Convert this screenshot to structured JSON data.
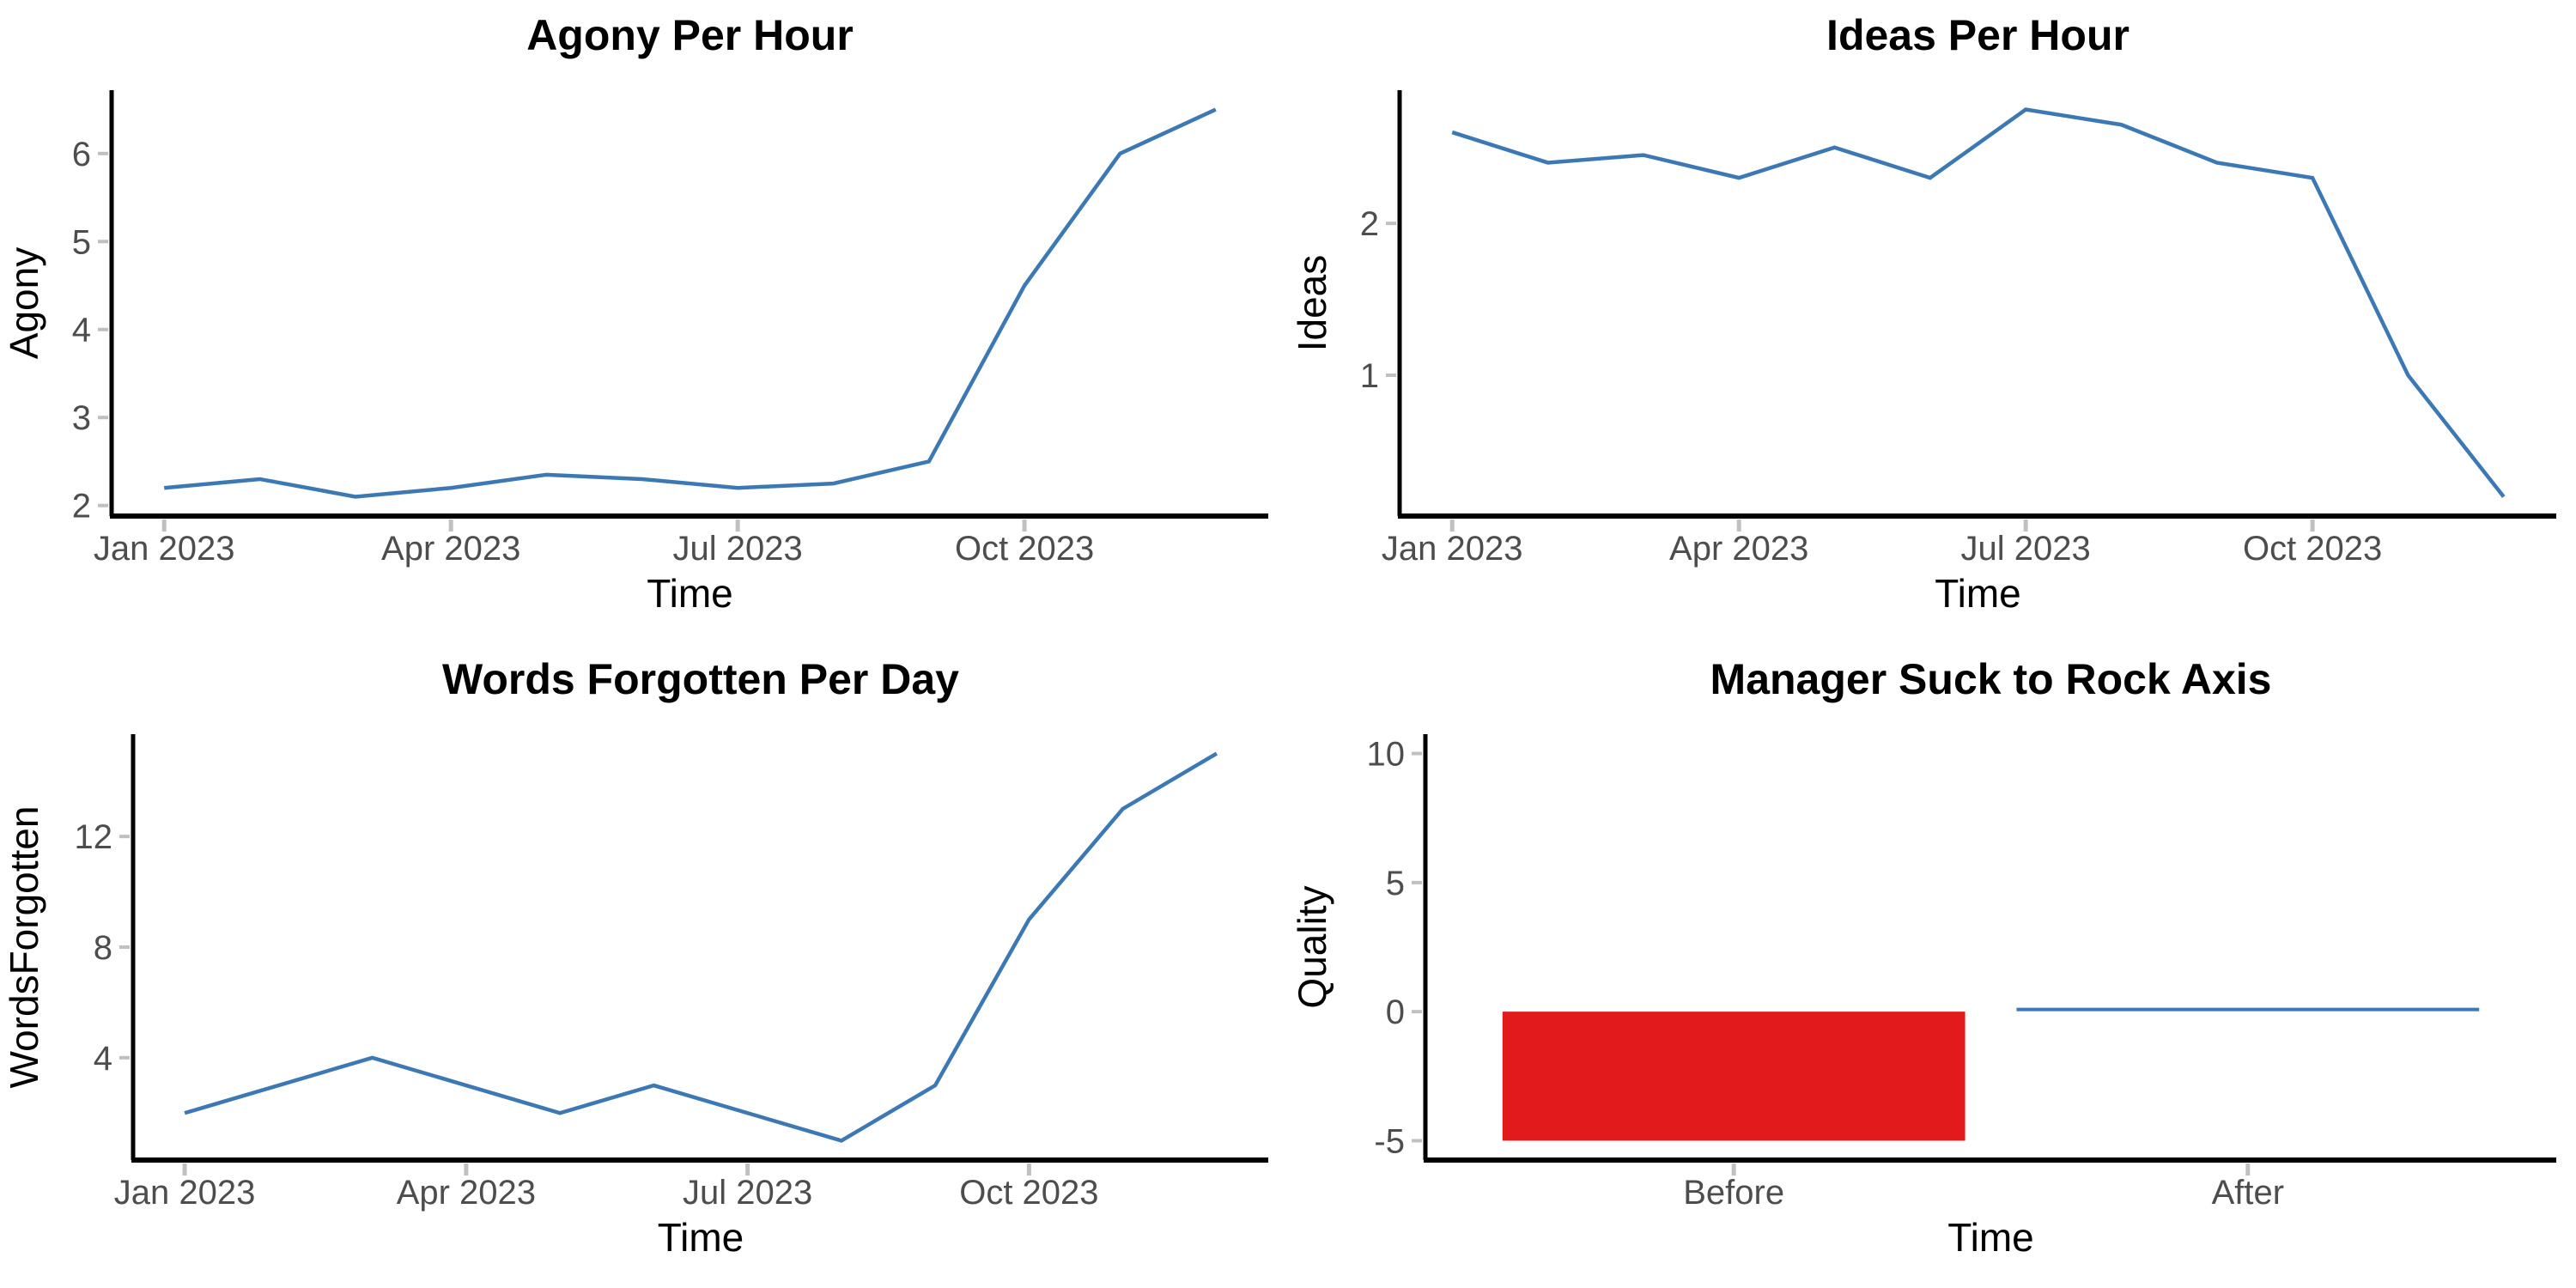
{
  "page": {
    "background": "#FFFFFF"
  },
  "style": {
    "axis_line_color": "#000000",
    "tick_mark_color": "#C0C0C0",
    "tick_label_color": "#4D4D4D",
    "title_color": "#000000",
    "axis_title_color": "#000000"
  },
  "chart_data": [
    {
      "type": "line",
      "title": "Agony Per Hour",
      "xlabel": "Time",
      "ylabel": "Agony",
      "x": [
        "Jan 2023",
        "Feb 2023",
        "Mar 2023",
        "Apr 2023",
        "May 2023",
        "Jun 2023",
        "Jul 2023",
        "Aug 2023",
        "Sep 2023",
        "Oct 2023",
        "Nov 2023",
        "Dec 2023"
      ],
      "values": [
        2.2,
        2.3,
        2.1,
        2.2,
        2.35,
        2.3,
        2.2,
        2.25,
        2.5,
        4.5,
        6.0,
        6.5
      ],
      "yticks": [
        2,
        3,
        4,
        5,
        6
      ],
      "xticks": [
        {
          "index": 0,
          "label": "Jan 2023"
        },
        {
          "index": 3,
          "label": "Apr 2023"
        },
        {
          "index": 6,
          "label": "Jul 2023"
        },
        {
          "index": 9,
          "label": "Oct 2023"
        }
      ],
      "line_color": "#3C79B4",
      "grid": false,
      "legend": "none"
    },
    {
      "type": "line",
      "title": "Ideas Per Hour",
      "xlabel": "Time",
      "ylabel": "Ideas",
      "x": [
        "Jan 2023",
        "Feb 2023",
        "Mar 2023",
        "Apr 2023",
        "May 2023",
        "Jun 2023",
        "Jul 2023",
        "Aug 2023",
        "Sep 2023",
        "Oct 2023",
        "Nov 2023",
        "Dec 2023"
      ],
      "values": [
        2.6,
        2.4,
        2.45,
        2.3,
        2.5,
        2.3,
        2.75,
        2.65,
        2.4,
        2.3,
        1.0,
        0.2
      ],
      "yticks": [
        1,
        2
      ],
      "xticks": [
        {
          "index": 0,
          "label": "Jan 2023"
        },
        {
          "index": 3,
          "label": "Apr 2023"
        },
        {
          "index": 6,
          "label": "Jul 2023"
        },
        {
          "index": 9,
          "label": "Oct 2023"
        }
      ],
      "line_color": "#3C79B4",
      "grid": false,
      "legend": "none"
    },
    {
      "type": "line",
      "title": "Words Forgotten Per Day",
      "xlabel": "Time",
      "ylabel": "WordsForgotten",
      "x": [
        "Jan 2023",
        "Feb 2023",
        "Mar 2023",
        "Apr 2023",
        "May 2023",
        "Jun 2023",
        "Jul 2023",
        "Aug 2023",
        "Sep 2023",
        "Oct 2023",
        "Nov 2023",
        "Dec 2023"
      ],
      "values": [
        2,
        3,
        4,
        3,
        2,
        3,
        2,
        1,
        3,
        9,
        13,
        15
      ],
      "yticks": [
        4,
        8,
        12
      ],
      "xticks": [
        {
          "index": 0,
          "label": "Jan 2023"
        },
        {
          "index": 3,
          "label": "Apr 2023"
        },
        {
          "index": 6,
          "label": "Jul 2023"
        },
        {
          "index": 9,
          "label": "Oct 2023"
        }
      ],
      "line_color": "#3C79B4",
      "grid": false,
      "legend": "none"
    },
    {
      "type": "bar",
      "title": "Manager Suck to Rock Axis",
      "xlabel": "Time",
      "ylabel": "Quality",
      "categories": [
        "Before",
        "After"
      ],
      "values": [
        -5,
        0.05
      ],
      "bar_colors": [
        "#E31A1C",
        "#3C79B4"
      ],
      "yticks": [
        -5,
        0,
        5,
        10
      ],
      "ylim": [
        -5.75,
        10.75
      ],
      "grid": false,
      "legend": "none"
    }
  ]
}
